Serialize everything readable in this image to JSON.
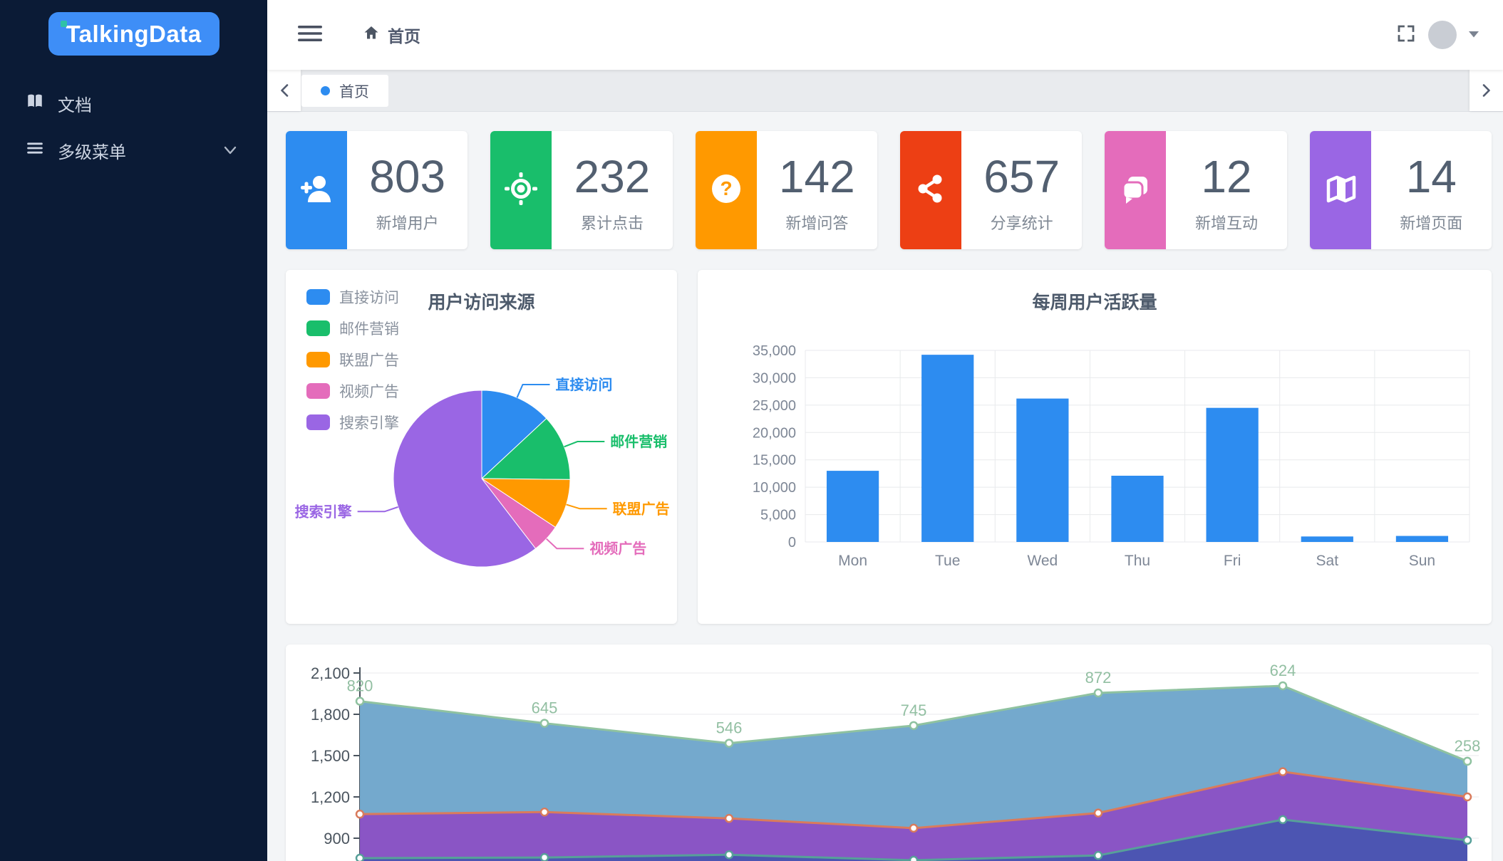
{
  "app": {
    "logo_text": "TalkingData",
    "brand_blue": "#3e8ef7",
    "logo_dot_color": "#2fc2a7"
  },
  "sidebar": {
    "bg": "#0b1b36",
    "items": [
      {
        "id": "docs",
        "label": "文档"
      },
      {
        "id": "multi-level-menu",
        "label": "多级菜单",
        "has_submenu": true
      }
    ]
  },
  "header": {
    "breadcrumb_home": "首页"
  },
  "tabbar": {
    "tabs": [
      {
        "label": "首页",
        "active": true,
        "dot_color": "#2d8cf0"
      }
    ]
  },
  "stat_cards": [
    {
      "value": "803",
      "label": "新增用户",
      "color": "#2d8cf0",
      "icon": "add-user-icon"
    },
    {
      "value": "232",
      "label": "累计点击",
      "color": "#19be6b",
      "icon": "target-icon"
    },
    {
      "value": "142",
      "label": "新增问答",
      "color": "#ff9900",
      "icon": "question-icon"
    },
    {
      "value": "657",
      "label": "分享统计",
      "color": "#ed3f14",
      "icon": "share-icon"
    },
    {
      "value": "12",
      "label": "新增互动",
      "color": "#e46cbb",
      "icon": "chat-icon"
    },
    {
      "value": "14",
      "label": "新增页面",
      "color": "#9a66e4",
      "icon": "map-icon"
    }
  ],
  "chart_data": [
    {
      "type": "pie",
      "title": "用户访问来源",
      "legend_position": "top-left",
      "slices": [
        {
          "name": "直接访问",
          "value": 335,
          "color": "#2d8cf0"
        },
        {
          "name": "邮件营销",
          "value": 310,
          "color": "#19be6b"
        },
        {
          "name": "联盟广告",
          "value": 234,
          "color": "#ff9900"
        },
        {
          "name": "视频广告",
          "value": 135,
          "color": "#e46cbb"
        },
        {
          "name": "搜索引擎",
          "value": 1548,
          "color": "#9a66e4"
        }
      ]
    },
    {
      "type": "bar",
      "title": "每周用户活跃量",
      "categories": [
        "Mon",
        "Tue",
        "Wed",
        "Thu",
        "Fri",
        "Sat",
        "Sun"
      ],
      "values": [
        13000,
        34200,
        26200,
        12100,
        24500,
        1000,
        1100
      ],
      "ylim": [
        0,
        35000
      ],
      "ytick_step": 5000,
      "bar_color": "#2d8cf0",
      "grid": true
    },
    {
      "type": "area",
      "stacked": true,
      "x_axis_labels_visible": false,
      "yticks": [
        2100,
        1800,
        1500,
        1200,
        900
      ],
      "series": [
        {
          "name": "band-1",
          "line_color": "#57a099",
          "fill_color": "#4c55b2",
          "cumulative": [
            755,
            760,
            780,
            740,
            775,
            1035,
            885
          ]
        },
        {
          "name": "band-2",
          "line_color": "#d97b5c",
          "fill_color": "#8a55c5",
          "cumulative": [
            1075,
            1090,
            1044,
            973,
            1083,
            1383,
            1200
          ]
        },
        {
          "name": "band-3",
          "line_color": "#8fc2a0",
          "fill_color": "#74a9cd",
          "label_color": "#92bfa2",
          "cumulative": [
            1895,
            1735,
            1590,
            1718,
            1955,
            2007,
            1459
          ],
          "point_labels": [
            820,
            645,
            546,
            745,
            872,
            624,
            258
          ]
        }
      ]
    }
  ]
}
